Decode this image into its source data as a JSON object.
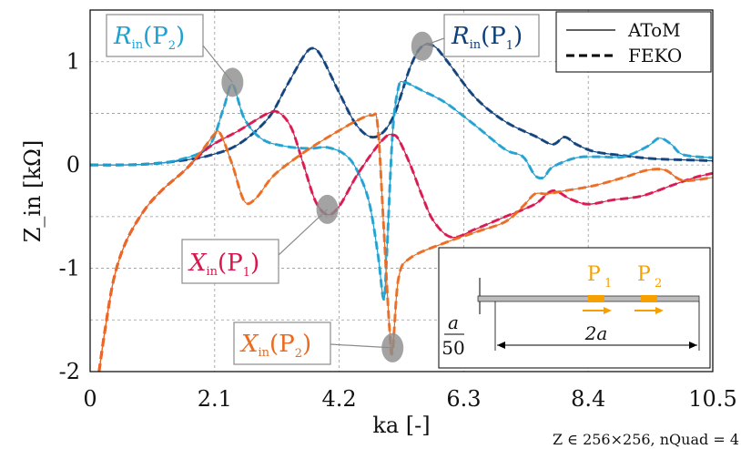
{
  "chart_data": {
    "type": "line",
    "xlabel": "ka [-]",
    "ylabel": "Z_in [kΩ]",
    "xlim": [
      0,
      10.5
    ],
    "ylim": [
      -2,
      1.5
    ],
    "xticks": [
      0,
      2.1,
      4.2,
      6.3,
      8.4,
      10.5
    ],
    "xtick_labels": [
      "0",
      "2.1",
      "4.2",
      "6.3",
      "8.4",
      "10.5"
    ],
    "yticks": [
      -2,
      -1,
      0,
      1
    ],
    "ytick_labels": [
      "-2",
      "-1",
      "0",
      "1"
    ],
    "grid": true,
    "legend": {
      "placement": "top-right",
      "entries": [
        {
          "label": "AToM",
          "style": "solid"
        },
        {
          "label": "FEKO",
          "style": "dashed"
        }
      ]
    },
    "footnote": "Z ∈ 256×256, nQuad = 4",
    "colors": {
      "R_P1": "#0d3f7a",
      "R_P2": "#1ea0d0",
      "X_P1": "#d8154c",
      "X_P2": "#ea6a1f",
      "callout_gray": "#8c8c8c",
      "port": "#f5a000"
    },
    "series": [
      {
        "id": "R_P1",
        "name": "R_in(P1)",
        "points": [
          [
            0,
            0
          ],
          [
            0.5,
            0.0
          ],
          [
            1,
            0.01
          ],
          [
            1.5,
            0.04
          ],
          [
            2,
            0.09
          ],
          [
            2.5,
            0.2
          ],
          [
            3,
            0.45
          ],
          [
            3.3,
            0.75
          ],
          [
            3.6,
            1.05
          ],
          [
            3.75,
            1.13
          ],
          [
            3.9,
            1.05
          ],
          [
            4.2,
            0.7
          ],
          [
            4.5,
            0.38
          ],
          [
            4.8,
            0.27
          ],
          [
            5.1,
            0.45
          ],
          [
            5.4,
            0.95
          ],
          [
            5.6,
            1.15
          ],
          [
            5.8,
            1.15
          ],
          [
            6,
            1.02
          ],
          [
            6.5,
            0.65
          ],
          [
            7,
            0.42
          ],
          [
            7.5,
            0.28
          ],
          [
            7.8,
            0.2
          ],
          [
            8,
            0.27
          ],
          [
            8.2,
            0.2
          ],
          [
            8.5,
            0.13
          ],
          [
            9,
            0.09
          ],
          [
            9.5,
            0.06
          ],
          [
            10,
            0.05
          ],
          [
            10.5,
            0.04
          ]
        ]
      },
      {
        "id": "R_P2",
        "name": "R_in(P2)",
        "points": [
          [
            0,
            0
          ],
          [
            0.5,
            0.0
          ],
          [
            1,
            0.01
          ],
          [
            1.5,
            0.05
          ],
          [
            2,
            0.18
          ],
          [
            2.25,
            0.55
          ],
          [
            2.4,
            0.78
          ],
          [
            2.6,
            0.45
          ],
          [
            2.9,
            0.25
          ],
          [
            3.3,
            0.18
          ],
          [
            3.7,
            0.16
          ],
          [
            4,
            0.17
          ],
          [
            4.3,
            0.1
          ],
          [
            4.5,
            -0.05
          ],
          [
            4.7,
            -0.35
          ],
          [
            4.85,
            -0.85
          ],
          [
            4.95,
            -1.3
          ],
          [
            5,
            -0.9
          ],
          [
            5.1,
            0.3
          ],
          [
            5.2,
            0.75
          ],
          [
            5.3,
            0.8
          ],
          [
            5.6,
            0.72
          ],
          [
            6,
            0.6
          ],
          [
            6.5,
            0.38
          ],
          [
            7,
            0.15
          ],
          [
            7.3,
            0.08
          ],
          [
            7.5,
            -0.1
          ],
          [
            7.65,
            -0.12
          ],
          [
            7.8,
            -0.02
          ],
          [
            8.2,
            0.07
          ],
          [
            8.6,
            0.08
          ],
          [
            9,
            0.08
          ],
          [
            9.4,
            0.18
          ],
          [
            9.6,
            0.26
          ],
          [
            9.8,
            0.2
          ],
          [
            10,
            0.1
          ],
          [
            10.5,
            0.07
          ]
        ]
      },
      {
        "id": "X_P1",
        "name": "X_in(P1)",
        "points": [
          [
            0.15,
            -2.0
          ],
          [
            0.25,
            -1.6
          ],
          [
            0.4,
            -1.1
          ],
          [
            0.6,
            -0.75
          ],
          [
            0.9,
            -0.45
          ],
          [
            1.2,
            -0.25
          ],
          [
            1.6,
            -0.05
          ],
          [
            2,
            0.17
          ],
          [
            2.5,
            0.33
          ],
          [
            3,
            0.5
          ],
          [
            3.2,
            0.5
          ],
          [
            3.4,
            0.35
          ],
          [
            3.6,
            0.0
          ],
          [
            3.8,
            -0.35
          ],
          [
            4,
            -0.48
          ],
          [
            4.2,
            -0.4
          ],
          [
            4.5,
            -0.1
          ],
          [
            4.8,
            0.15
          ],
          [
            5,
            0.28
          ],
          [
            5.1,
            0.29
          ],
          [
            5.2,
            0.25
          ],
          [
            5.4,
            0.0
          ],
          [
            5.6,
            -0.3
          ],
          [
            5.8,
            -0.55
          ],
          [
            6.1,
            -0.7
          ],
          [
            6.5,
            -0.62
          ],
          [
            7,
            -0.5
          ],
          [
            7.5,
            -0.38
          ],
          [
            7.8,
            -0.25
          ],
          [
            8.1,
            -0.33
          ],
          [
            8.4,
            -0.38
          ],
          [
            8.8,
            -0.34
          ],
          [
            9.3,
            -0.3
          ],
          [
            9.8,
            -0.2
          ],
          [
            10.2,
            -0.12
          ],
          [
            10.5,
            -0.08
          ]
        ]
      },
      {
        "id": "X_P2",
        "name": "X_in(P2)",
        "points": [
          [
            0.15,
            -2.0
          ],
          [
            0.25,
            -1.6
          ],
          [
            0.4,
            -1.1
          ],
          [
            0.6,
            -0.75
          ],
          [
            0.9,
            -0.45
          ],
          [
            1.2,
            -0.25
          ],
          [
            1.6,
            -0.05
          ],
          [
            1.9,
            0.15
          ],
          [
            2.1,
            0.3
          ],
          [
            2.2,
            0.3
          ],
          [
            2.4,
            0.0
          ],
          [
            2.6,
            -0.35
          ],
          [
            2.8,
            -0.32
          ],
          [
            3.1,
            -0.1
          ],
          [
            3.6,
            0.12
          ],
          [
            4.1,
            0.3
          ],
          [
            4.5,
            0.43
          ],
          [
            4.75,
            0.48
          ],
          [
            4.85,
            0.38
          ],
          [
            4.95,
            -0.6
          ],
          [
            5.05,
            -1.6
          ],
          [
            5.1,
            -1.8
          ],
          [
            5.2,
            -1.1
          ],
          [
            5.4,
            -0.9
          ],
          [
            6,
            -0.75
          ],
          [
            6.5,
            -0.65
          ],
          [
            7,
            -0.55
          ],
          [
            7.3,
            -0.4
          ],
          [
            7.5,
            -0.28
          ],
          [
            7.7,
            -0.28
          ],
          [
            8,
            -0.25
          ],
          [
            8.5,
            -0.2
          ],
          [
            9,
            -0.12
          ],
          [
            9.4,
            -0.05
          ],
          [
            9.7,
            -0.05
          ],
          [
            10,
            -0.15
          ],
          [
            10.5,
            -0.12
          ]
        ]
      }
    ],
    "annotations": [
      {
        "label": "R_in(P2)",
        "main": "R",
        "sub": "in",
        "arg": "(P",
        "argsub": "2",
        "close": ")",
        "color": "#1ea0d0",
        "target": [
          2.4,
          0.8
        ]
      },
      {
        "label": "R_in(P1)",
        "main": "R",
        "sub": "in",
        "arg": "(P",
        "argsub": "1",
        "close": ")",
        "color": "#0d3f7a",
        "target": [
          5.6,
          1.15
        ]
      },
      {
        "label": "X_in(P1)",
        "main": "X",
        "sub": "in",
        "arg": "(P",
        "argsub": "1",
        "close": ")",
        "color": "#d8154c",
        "target": [
          4.0,
          -0.43
        ]
      },
      {
        "label": "X_in(P2)",
        "main": "X",
        "sub": "in",
        "arg": "(P",
        "argsub": "2",
        "close": ")",
        "color": "#ea6a1f",
        "target": [
          5.1,
          -1.77
        ]
      }
    ],
    "inset": {
      "dim_num": "a",
      "dim_den": "50",
      "length": "2a",
      "port1": "P",
      "port1_sub": "1",
      "port2": "P",
      "port2_sub": "2"
    }
  }
}
